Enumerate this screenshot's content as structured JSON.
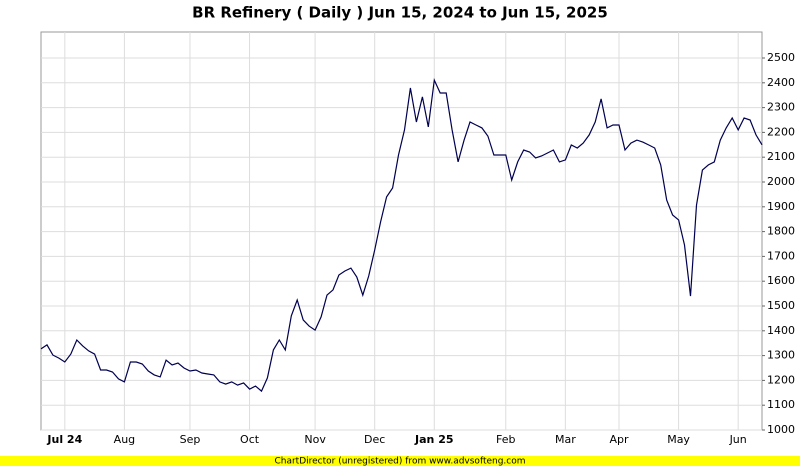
{
  "chart_data": {
    "type": "line",
    "title": "BR Refinery ( Daily ) Jun 15, 2024 to Jun 15, 2025",
    "footer": "ChartDirector (unregistered) from www.advsofteng.com",
    "categories": [
      null,
      null,
      null,
      null,
      "Jul 24",
      null,
      null,
      null,
      null,
      null,
      null,
      null,
      null,
      null,
      "Aug",
      null,
      null,
      null,
      null,
      null,
      null,
      null,
      null,
      null,
      null,
      "Sep",
      null,
      null,
      null,
      null,
      null,
      null,
      null,
      null,
      null,
      "Oct",
      null,
      null,
      null,
      null,
      null,
      null,
      null,
      null,
      null,
      null,
      "Nov",
      null,
      null,
      null,
      null,
      null,
      null,
      null,
      null,
      null,
      "Dec",
      null,
      null,
      null,
      null,
      null,
      null,
      null,
      null,
      null,
      "Jan 25",
      null,
      null,
      null,
      null,
      null,
      null,
      null,
      null,
      null,
      null,
      null,
      "Feb",
      null,
      null,
      null,
      null,
      null,
      null,
      null,
      null,
      null,
      "Mar",
      null,
      null,
      null,
      null,
      null,
      null,
      null,
      null,
      "Apr",
      null,
      null,
      null,
      null,
      null,
      null,
      null,
      null,
      null,
      "May",
      null,
      null,
      null,
      null,
      null,
      null,
      null,
      null,
      null,
      "Jun",
      null,
      null,
      null,
      null
    ],
    "series": [
      {
        "color": "#000050",
        "values": [
          1327,
          1343,
          1302,
          1290,
          1274,
          1306,
          1363,
          1339,
          1319,
          1306,
          1242,
          1242,
          1234,
          1206,
          1194,
          1274,
          1274,
          1266,
          1238,
          1222,
          1214,
          1282,
          1262,
          1270,
          1250,
          1238,
          1242,
          1230,
          1226,
          1222,
          1194,
          1185,
          1194,
          1181,
          1190,
          1165,
          1177,
          1157,
          1210,
          1323,
          1363,
          1323,
          1460,
          1524,
          1444,
          1419,
          1403,
          1456,
          1544,
          1565,
          1625,
          1641,
          1653,
          1617,
          1544,
          1621,
          1726,
          1839,
          1940,
          1976,
          2109,
          2210,
          2379,
          2242,
          2343,
          2222,
          2411,
          2359,
          2359,
          2210,
          2081,
          2169,
          2242,
          2230,
          2218,
          2185,
          2109,
          2109,
          2109,
          2008,
          2081,
          2129,
          2121,
          2097,
          2105,
          2117,
          2129,
          2081,
          2089,
          2149,
          2137,
          2157,
          2190,
          2242,
          2335,
          2218,
          2230,
          2230,
          2129,
          2157,
          2169,
          2161,
          2149,
          2137,
          2069,
          1927,
          1867,
          1847,
          1746,
          1540,
          1907,
          2048,
          2069,
          2081,
          2169,
          2218,
          2258,
          2210,
          2258,
          2250,
          2190,
          2150
        ]
      }
    ],
    "ylim": [
      1000,
      2600
    ],
    "yticks": [
      1000,
      1100,
      1200,
      1300,
      1400,
      1500,
      1600,
      1700,
      1800,
      1900,
      2000,
      2100,
      2200,
      2300,
      2400,
      2500
    ],
    "grid": true
  }
}
